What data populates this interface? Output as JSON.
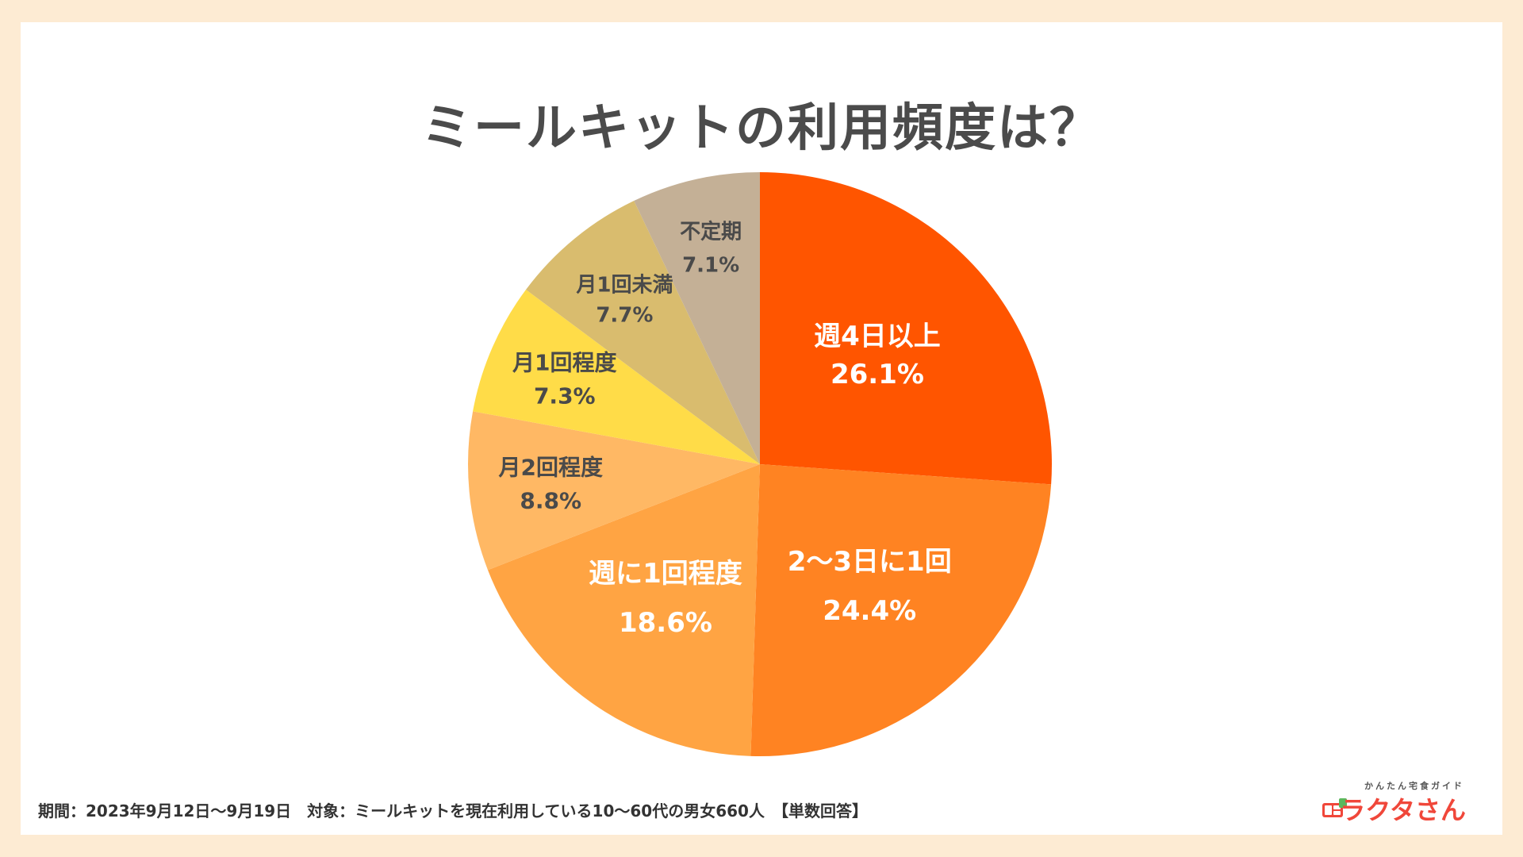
{
  "chart_data": {
    "type": "pie",
    "title": "ミールキットの利用頻度は？",
    "start_angle_deg": 0,
    "direction": "clockwise",
    "slices": [
      {
        "label": "週4日以上",
        "value": 26.1,
        "value_label": "26.1%",
        "color": "#ff5500",
        "text_color": "#ffffff"
      },
      {
        "label": "2〜3日に1回",
        "value": 24.4,
        "value_label": "24.4%",
        "color": "#ff8322",
        "text_color": "#ffffff"
      },
      {
        "label": "週に1回程度",
        "value": 18.6,
        "value_label": "18.6%",
        "color": "#ffa443",
        "text_color": "#ffffff"
      },
      {
        "label": "月2回程度",
        "value": 8.8,
        "value_label": "8.8%",
        "color": "#ffb864",
        "text_color": "#4a4a4a"
      },
      {
        "label": "月1回程度",
        "value": 7.3,
        "value_label": "7.3%",
        "color": "#ffdc48",
        "text_color": "#4a4a4a"
      },
      {
        "label": "月1回未満",
        "value": 7.7,
        "value_label": "7.7%",
        "color": "#d9bc6e",
        "text_color": "#4a4a4a"
      },
      {
        "label": "不定期",
        "value": 7.1,
        "value_label": "7.1%",
        "color": "#c4b096",
        "text_color": "#4a4a4a"
      }
    ]
  },
  "footnote": "期間：2023年9月12日〜9月19日　対象：ミールキットを現在利用している10〜60代の男女660人　【単数回答】",
  "logo": {
    "tagline": "かんたん宅食ガイド",
    "name": "ラクタさん",
    "icon": "lunchbox-icon",
    "color": "#f0473a"
  }
}
